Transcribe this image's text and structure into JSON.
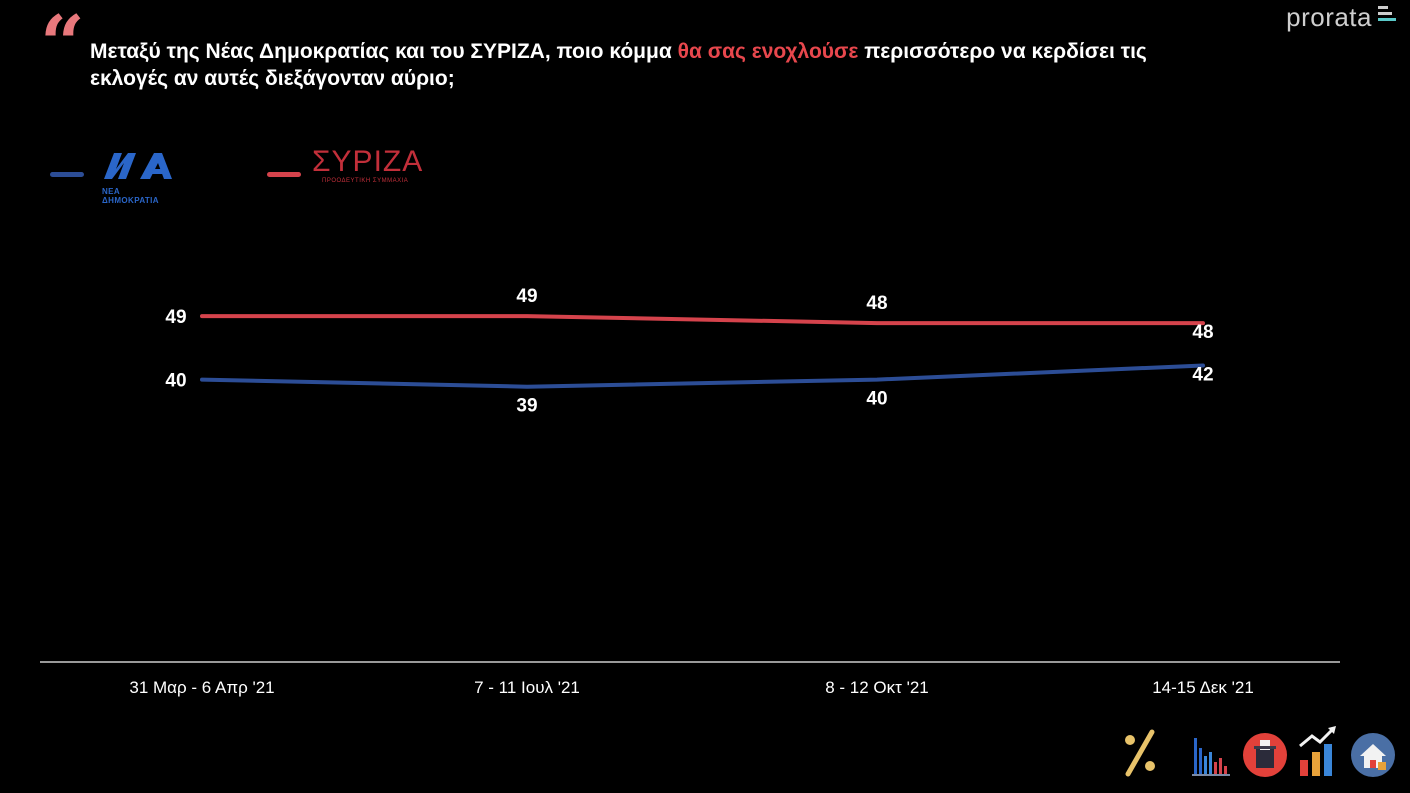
{
  "header": {
    "quote_glyph": "“",
    "title_part1": "Μεταξύ της Νέας Δημοκρατίας και του ΣΥΡΙΖΑ, ποιο κόμμα ",
    "title_highlight": "θα σας ενοχλούσε",
    "title_part2": " περισσότερο να κερδίσει τις εκλογές αν αυτές διεξάγονταν αύριο;",
    "brand": "prorata"
  },
  "legend": {
    "nd_logo_text": "ΝΔ",
    "nd_subtitle": "ΝΕΑ ΔΗΜΟΚΡΑΤΙΑ",
    "syriza_logo_text": "ΣΥΡΙΖΑ",
    "syriza_subtitle": "ΠΡΟΟΔΕΥΤΙΚΗ ΣΥΜΜΑΧΙΑ"
  },
  "colors": {
    "nd": "#2c4d96",
    "syriza": "#d5434c",
    "highlight": "#e8474d",
    "axis": "#cccccc"
  },
  "chart_data": {
    "type": "line",
    "title": "Μεταξύ της Νέας Δημοκρατίας και του ΣΥΡΙΖΑ, ποιο κόμμα θα σας ενοχλούσε περισσότερο να κερδίσει τις εκλογές αν αυτές διεξάγονταν αύριο;",
    "categories": [
      "31 Μαρ - 6 Απρ '21",
      "7 - 11 Ιουλ '21",
      "8 - 12 Οκτ '21",
      "14-15 Δεκ '21"
    ],
    "series": [
      {
        "name": "ΣΥΡΙΖΑ",
        "values": [
          49,
          49,
          48,
          48
        ],
        "color": "#d5434c"
      },
      {
        "name": "ΝΔ",
        "values": [
          40,
          39,
          40,
          42
        ],
        "color": "#2c4d96"
      }
    ],
    "xlabel": "",
    "ylabel": "",
    "ylim": [
      0,
      58
    ],
    "grid": false,
    "legend": "top-left"
  },
  "footer_icons": [
    "percent-icon",
    "bar-chart-icon",
    "ballot-box-icon",
    "growth-chart-icon",
    "house-icon"
  ]
}
